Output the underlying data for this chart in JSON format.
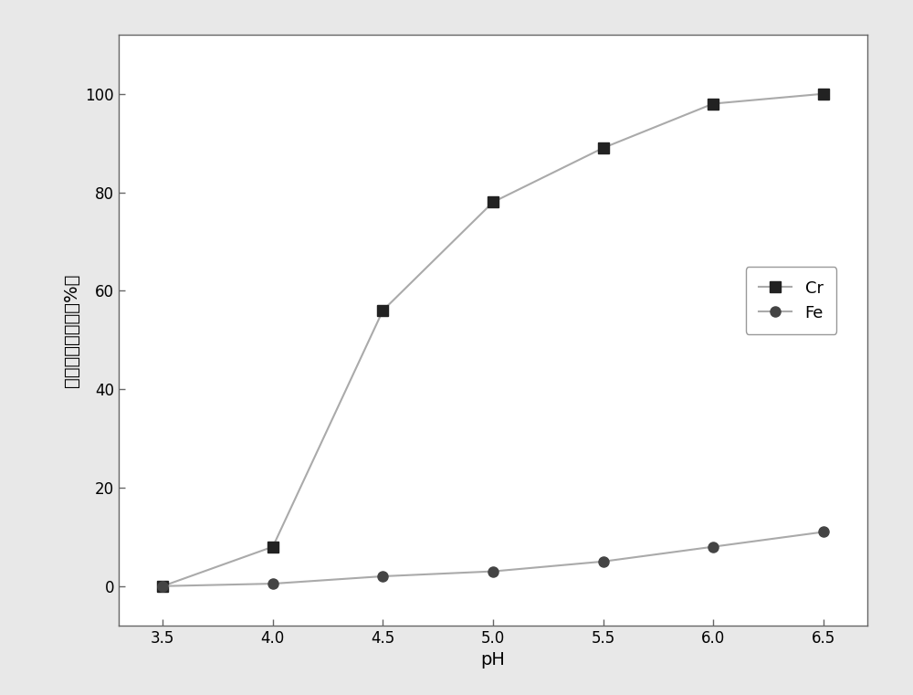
{
  "x": [
    3.5,
    4.0,
    4.5,
    5.0,
    5.5,
    6.0,
    6.5
  ],
  "cr_y": [
    0,
    8,
    56,
    78,
    89,
    98,
    100
  ],
  "fe_y": [
    0,
    0.5,
    2,
    3,
    5,
    8,
    11
  ],
  "xlabel": "pH",
  "ylabel": "鐵、铬的沉淀率（%）",
  "xlim": [
    3.3,
    6.7
  ],
  "ylim": [
    -8,
    112
  ],
  "xticks": [
    3.5,
    4.0,
    4.5,
    5.0,
    5.5,
    6.0,
    6.5
  ],
  "yticks": [
    0,
    20,
    40,
    60,
    80,
    100
  ],
  "cr_label": "Cr",
  "fe_label": "Fe",
  "line_color": "#aaaaaa",
  "marker_color_cr": "#222222",
  "marker_color_fe": "#444444",
  "plot_bg": "#ffffff",
  "fig_bg": "#e8e8e8",
  "legend_fontsize": 13,
  "label_fontsize": 14,
  "tick_fontsize": 12
}
